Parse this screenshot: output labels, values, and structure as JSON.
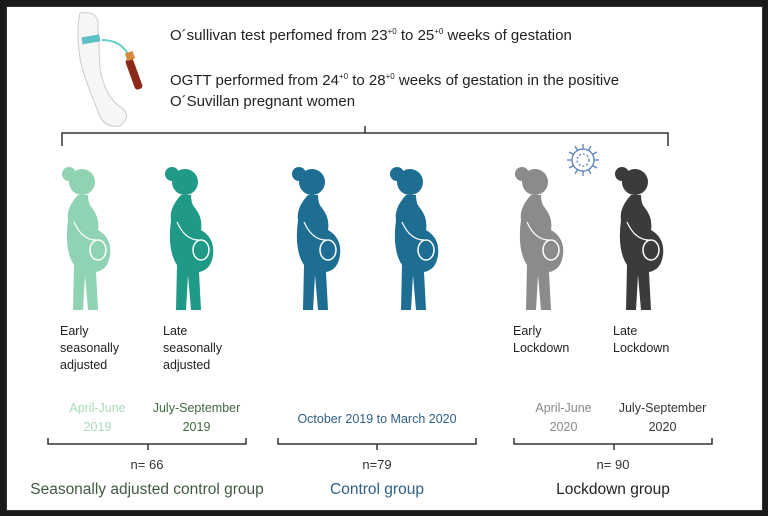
{
  "header": {
    "line1_pre": "O´sullivan test perfomed from 23",
    "line1_sup1": "+0",
    "line1_mid": " to 25",
    "line1_sup2": "+0",
    "line1_post": " weeks of gestation",
    "line2_pre": "OGTT performed from 24",
    "line2_sup1": "+0",
    "line2_mid": " to 28",
    "line2_sup2": "+0",
    "line2_post": " weeks of gestation in the positive",
    "line3": "O´Suvillan pregnant women",
    "icon": "arm-blood-draw-icon"
  },
  "colors": {
    "early_seasonal": "#8fd3b2",
    "late_seasonal": "#1e9a86",
    "control": "#1e6d93",
    "early_lockdown": "#8b8b8b",
    "late_lockdown": "#3b3b3b",
    "virus": "#5a7fc0"
  },
  "figures": [
    {
      "label": [
        "Early",
        "seasonally",
        "adjusted"
      ]
    },
    {
      "label": [
        "Late",
        "seasonally",
        "adjusted"
      ]
    },
    {
      "label": []
    },
    {
      "label": []
    },
    {
      "label": [
        "Early",
        "Lockdown"
      ]
    },
    {
      "label": [
        "Late",
        "Lockdown"
      ]
    }
  ],
  "groups": [
    {
      "periods": [
        {
          "text": [
            "April-June",
            "2019"
          ],
          "color": "#a9d9b9"
        },
        {
          "text": [
            "July-September",
            "2019"
          ],
          "color": "#3f6b3f"
        }
      ],
      "n": "n= 66",
      "name": "Seasonally adjusted control group",
      "name_color": "#3f5a3f"
    },
    {
      "periods": [
        {
          "text": [
            "October 2019 to March 2020"
          ],
          "color": "#2f5f87"
        }
      ],
      "n": "n=79",
      "name": "Control group",
      "name_color": "#2f5f87"
    },
    {
      "periods": [
        {
          "text": [
            "April-June",
            "2020"
          ],
          "color": "#888888"
        },
        {
          "text": [
            "July-September",
            "2020"
          ],
          "color": "#333333"
        }
      ],
      "n": "n= 90",
      "name": "Lockdown group",
      "name_color": "#222222"
    }
  ]
}
